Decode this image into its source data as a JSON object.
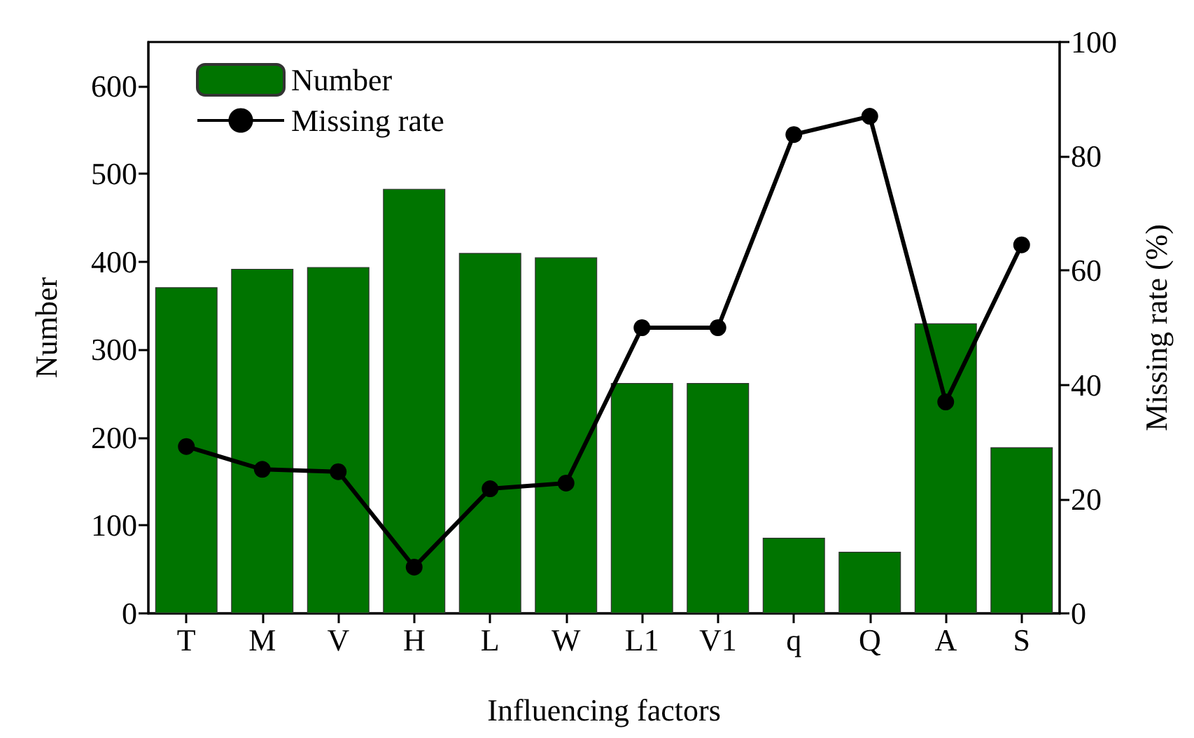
{
  "chart_data": {
    "type": "bar",
    "xlabel": "Influencing factors",
    "ylabel": "Number",
    "y2label": "Missing rate (%)",
    "categories": [
      "T",
      "M",
      "V",
      "H",
      "L",
      "W",
      "L1",
      "V1",
      "q",
      "Q",
      "A",
      "S"
    ],
    "series": [
      {
        "name": "Number",
        "color": "#007400",
        "values": [
          371,
          392,
          394,
          483,
          410,
          405,
          262,
          262,
          86,
          70,
          330,
          189
        ]
      },
      {
        "name": "Missing rate",
        "type": "line",
        "axis": "y2",
        "color": "#000000",
        "marker": "circle",
        "values": [
          29.2,
          25.2,
          24.8,
          8.1,
          21.8,
          22.8,
          50,
          50,
          83.8,
          87,
          37,
          64.5
        ]
      }
    ],
    "ylim": [
      0,
      650
    ],
    "yticks": [
      0,
      100,
      200,
      300,
      400,
      500,
      600
    ],
    "y2lim": [
      0,
      100
    ],
    "y2ticks": [
      0,
      20,
      40,
      60,
      80,
      100
    ],
    "grid": false,
    "legend": "top left"
  }
}
